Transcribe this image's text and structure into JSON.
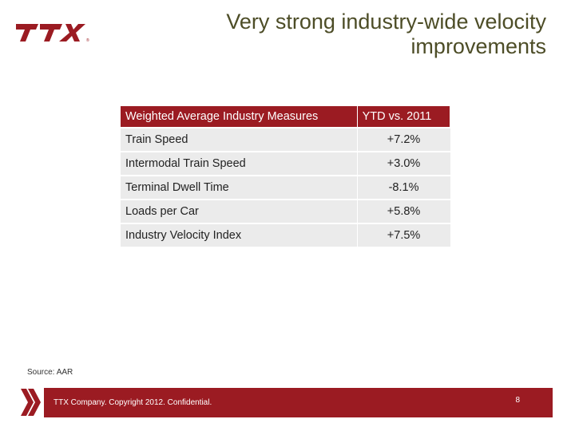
{
  "logo": {
    "text": "TTX",
    "mark": "®"
  },
  "title": "Very strong industry-wide velocity improvements",
  "table": {
    "headers": [
      "Weighted Average Industry Measures",
      "YTD vs. 2011"
    ],
    "rows": [
      {
        "measure": "Train Speed",
        "value": "+7.2%"
      },
      {
        "measure": "Intermodal Train Speed",
        "value": "+3.0%"
      },
      {
        "measure": "Terminal Dwell Time",
        "value": "-8.1%"
      },
      {
        "measure": "Loads per Car",
        "value": "+5.8%"
      },
      {
        "measure": "Industry Velocity Index",
        "value": "+7.5%"
      }
    ]
  },
  "source": "Source: AAR",
  "footer": {
    "copyright": "TTX Company. Copyright 2012. Confidential.",
    "page_number": "8"
  },
  "colors": {
    "brand": "#9b1b22",
    "title": "#4d4d27",
    "row_bg": "#ebebeb"
  }
}
